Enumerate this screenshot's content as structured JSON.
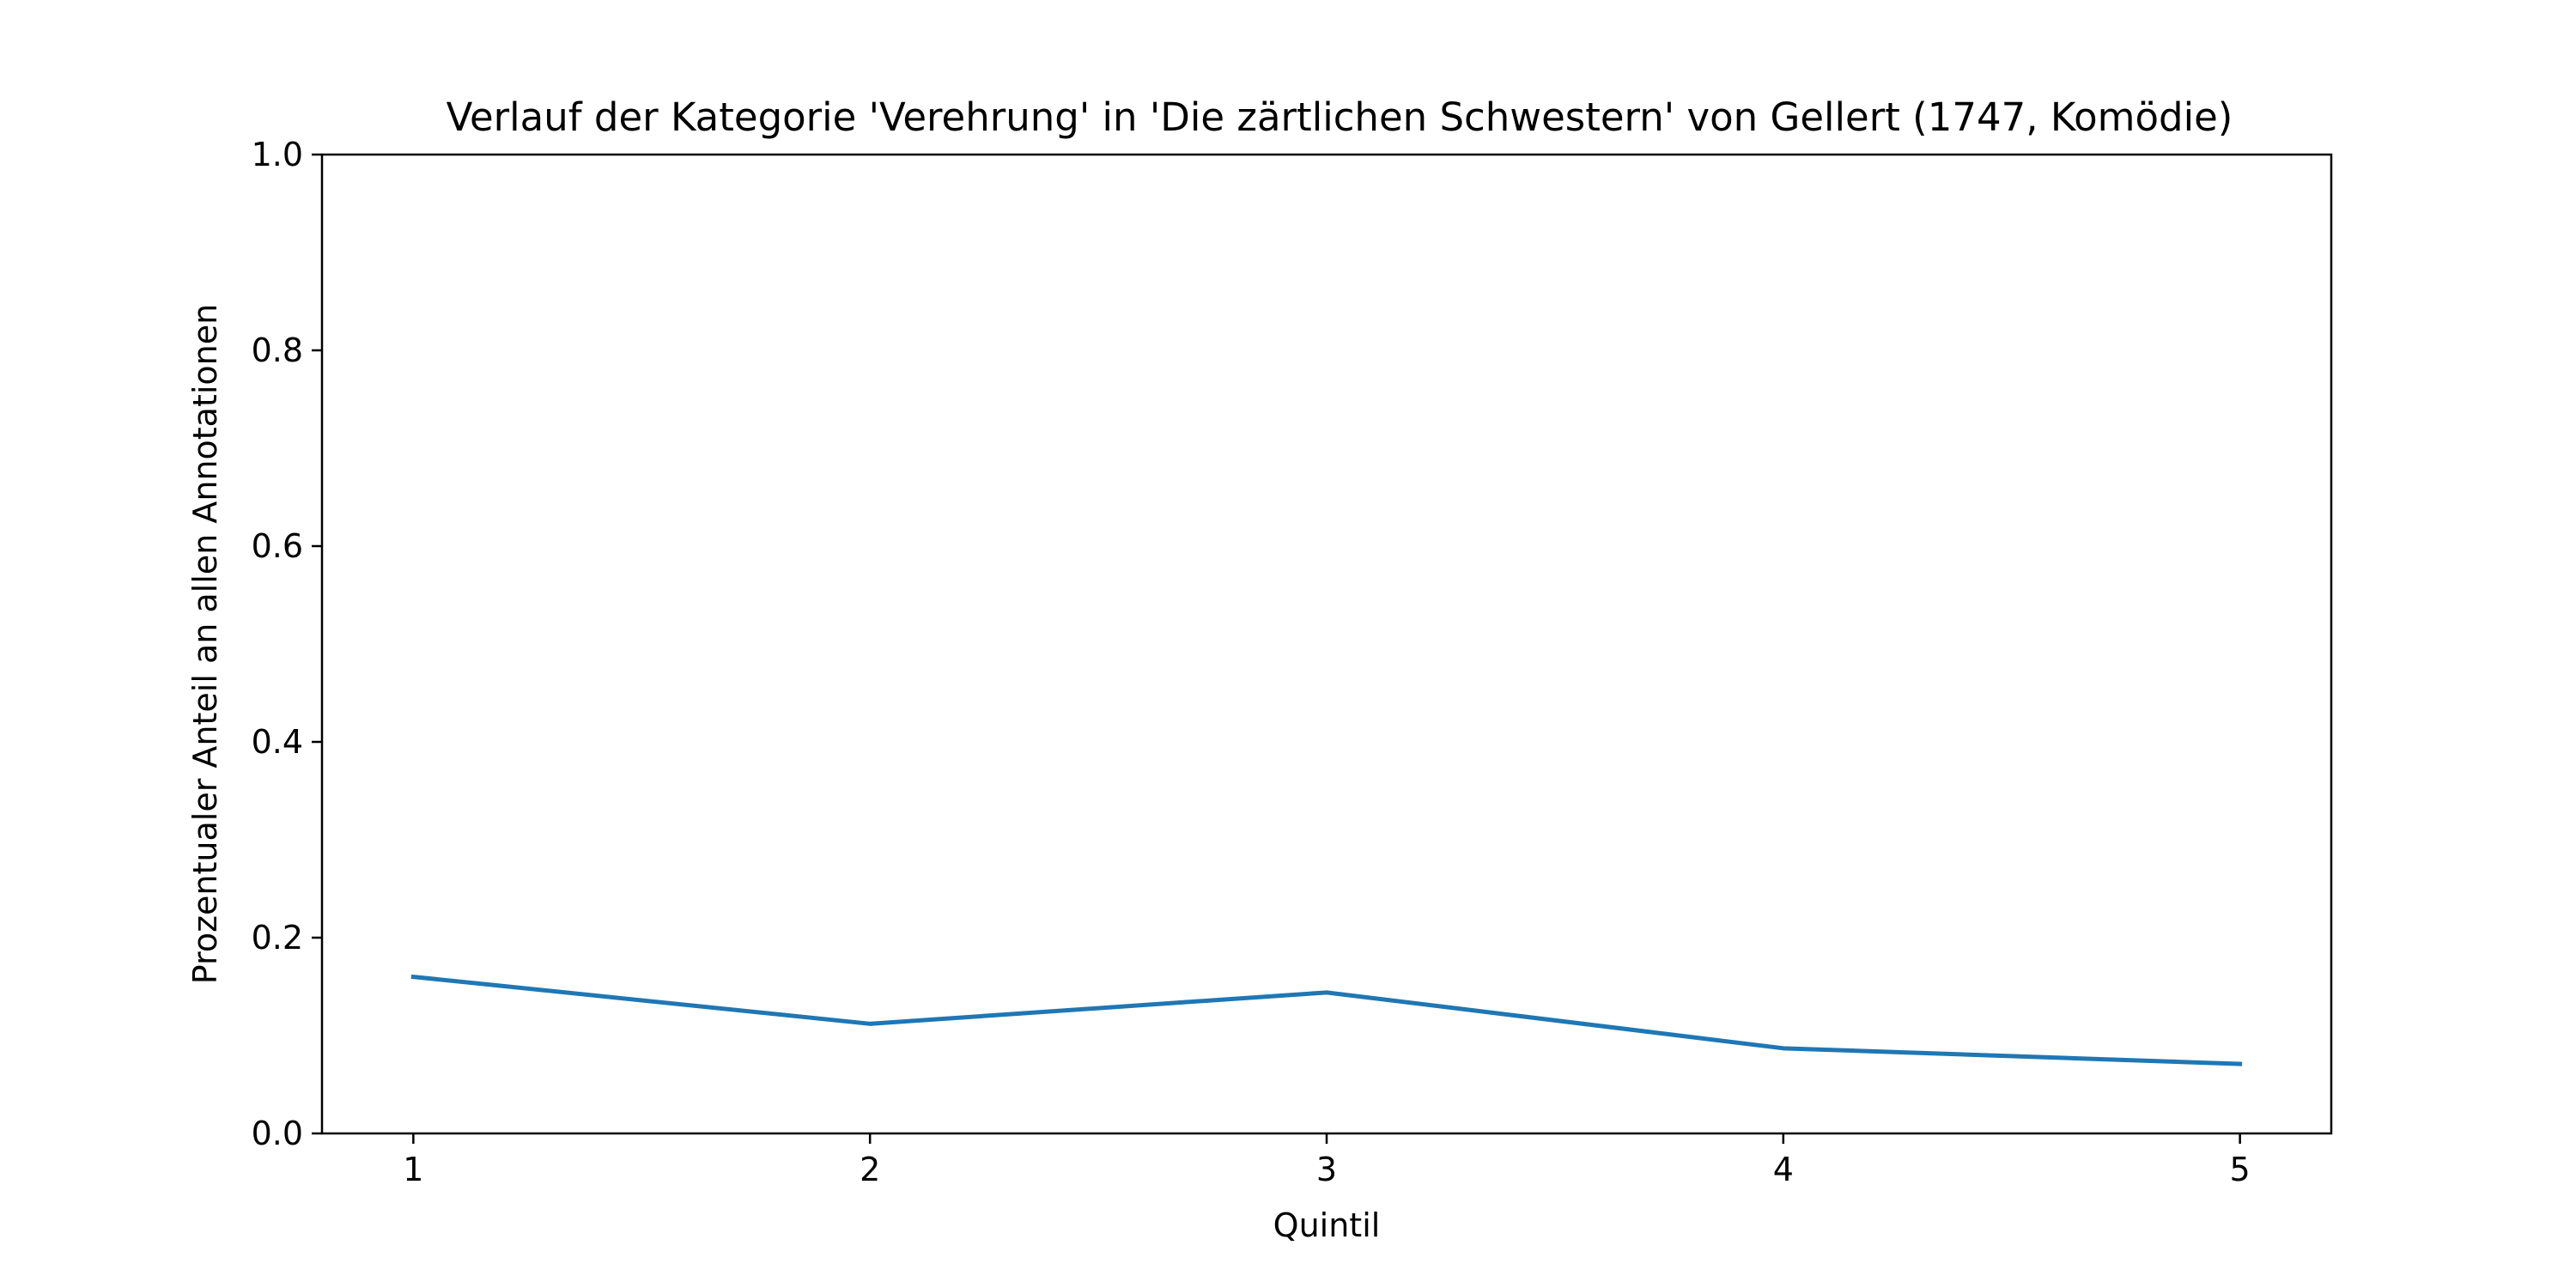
{
  "chart_data": {
    "type": "line",
    "title": "Verlauf der Kategorie 'Verehrung' in 'Die zärtlichen Schwestern' von Gellert (1747, Komödie)",
    "xlabel": "Quintil",
    "ylabel": "Prozentualer Anteil an allen Annotationen",
    "x": [
      1,
      2,
      3,
      4,
      5
    ],
    "series": [
      {
        "values": [
          0.16,
          0.112,
          0.144,
          0.087,
          0.071
        ],
        "color": "#1f77b4"
      }
    ],
    "xlim": [
      0.8,
      5.2
    ],
    "ylim": [
      0.0,
      1.0
    ],
    "xticks": [
      "1",
      "2",
      "3",
      "4",
      "5"
    ],
    "yticks": [
      "0.0",
      "0.2",
      "0.4",
      "0.6",
      "0.8",
      "1.0"
    ],
    "grid": false
  }
}
